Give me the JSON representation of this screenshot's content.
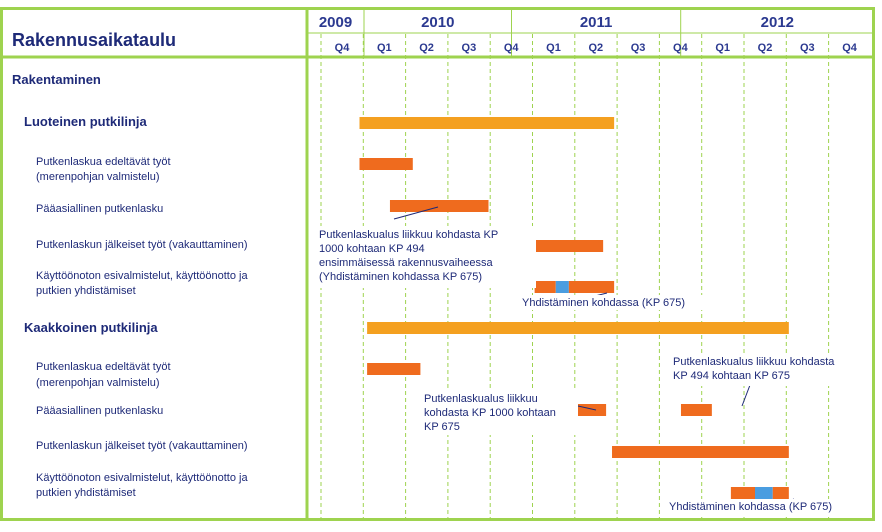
{
  "chart_data": {
    "type": "gantt",
    "title": "Rakennusaikataulu",
    "years": [
      {
        "label": "2009",
        "quarters": [
          "Q4"
        ]
      },
      {
        "label": "2010",
        "quarters": [
          "Q1",
          "Q2",
          "Q3",
          "Q4"
        ]
      },
      {
        "label": "2011",
        "quarters": [
          "Q1",
          "Q2",
          "Q3",
          "Q4"
        ]
      },
      {
        "label": "2012",
        "quarters": [
          "Q1",
          "Q2",
          "Q3",
          "Q4"
        ]
      }
    ],
    "timeline_start": "2009-Q4",
    "section": "Rakentaminen",
    "groups": [
      {
        "label": "Luoteinen putkilinja",
        "summary": {
          "start": 0.91,
          "end": 6.93
        },
        "tasks": [
          {
            "label": [
              "Putkenlaskua edeltävät työt",
              "(merenpohjan valmistelu)"
            ],
            "segments": [
              {
                "start": 0.91,
                "end": 2.17
              }
            ]
          },
          {
            "label": [
              "Pääasiallinen putkenlasku"
            ],
            "segments": [
              {
                "start": 1.63,
                "end": 3.96
              }
            ]
          },
          {
            "label": [
              "Putkenlaskun jälkeiset työt (vakauttaminen)"
            ],
            "segments": [
              {
                "start": 4.52,
                "end": 6.67
              }
            ]
          },
          {
            "label": [
              "Käyttöönoton esivalmistelut, käyttöönotto ja",
              "putkien yhdistämiset"
            ],
            "segments": [
              {
                "start": 5.05,
                "end": 5.55
              },
              {
                "start": 5.55,
                "end": 5.86,
                "highlight": true
              },
              {
                "start": 5.86,
                "end": 6.93
              }
            ]
          }
        ]
      },
      {
        "label": "Kaakkoinen putkilinja",
        "summary": {
          "start": 1.09,
          "end": 11.06
        },
        "tasks": [
          {
            "label": [
              "Putkenlaskua edeltävät työt",
              "(merenpohjan valmistelu)"
            ],
            "segments": [
              {
                "start": 1.09,
                "end": 2.35
              }
            ]
          },
          {
            "label": [
              "Pääasiallinen putkenlasku"
            ],
            "segments": [
              {
                "start": 5.39,
                "end": 6.74
              },
              {
                "start": 8.51,
                "end": 9.24
              }
            ]
          },
          {
            "label": [
              "Putkenlaskun jälkeiset työt (vakauttaminen)"
            ],
            "segments": [
              {
                "start": 6.88,
                "end": 11.06
              }
            ]
          },
          {
            "label": [
              "Käyttöönoton esivalmistelut, käyttöönotto ja",
              "putkien yhdistämiset"
            ],
            "segments": [
              {
                "start": 9.69,
                "end": 10.26
              },
              {
                "start": 10.26,
                "end": 10.68,
                "highlight": true
              },
              {
                "start": 10.68,
                "end": 11.06
              }
            ]
          }
        ]
      }
    ],
    "annotations": [
      {
        "lines": [
          "Putkenlaskualus liikkuu kohdasta KP",
          "1000 kohtaan KP 494",
          "ensimmäisessä rakennusvaiheessa",
          "(Yhdistäminen kohdassa KP 675)"
        ]
      },
      {
        "lines": [
          "Yhdistäminen kohdassa (KP 675)"
        ]
      },
      {
        "lines": [
          "Putkenlaskualus liikkuu",
          "kohdasta KP 1000 kohtaan",
          "KP 675"
        ]
      },
      {
        "lines": [
          "Putkenlaskualus liikkuu kohdasta",
          "KP 494 kohtaan KP 675"
        ]
      },
      {
        "lines": [
          "Yhdistäminen kohdassa (KP 675)"
        ]
      }
    ],
    "colors": {
      "bar_primary": "#f4a020",
      "bar_task": "#ef6b1e",
      "bar_highlight": "#4a9de0",
      "grid": "#9ed34f",
      "text": "#1e2a78"
    }
  }
}
